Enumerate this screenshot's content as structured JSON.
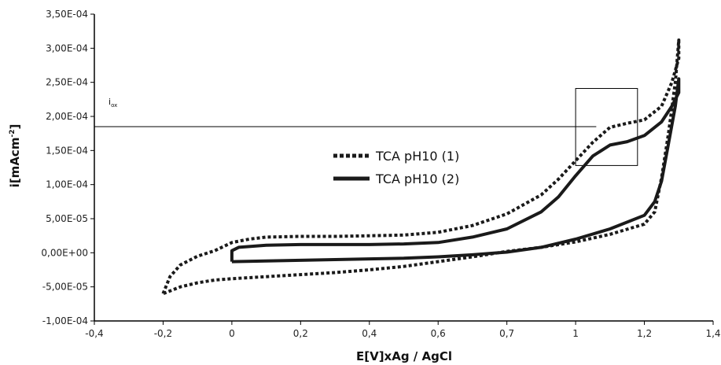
{
  "chart_data": {
    "type": "line",
    "title": "",
    "xlabel": "E[V]xAg / AgCl",
    "ylabel": "i[mAcm",
    "ylabel_sup": "-2",
    "ylabel_close": "]",
    "x_tick_labels": [
      "-0,4",
      "-0,2",
      "0",
      "0,2",
      "0,4",
      "0,6",
      "0,7",
      "1",
      "1,2",
      "1,4"
    ],
    "y_tick_labels": [
      "-1,00E-04",
      "-5,00E-05",
      "0,00E+00",
      "5,00E-05",
      "1,00E-04",
      "1,50E-04",
      "2,00E-04",
      "2,50E-04",
      "3,00E-04",
      "3,50E-04"
    ],
    "xlim": [
      -0.4,
      1.4
    ],
    "ylim": [
      -0.0001,
      0.00035
    ],
    "grid": false,
    "legend_position": "center",
    "annotation": {
      "label": "i",
      "sub": "ox",
      "y": 0.000185,
      "box_x": [
        1.0,
        1.18
      ],
      "box_y": [
        0.000128,
        0.000241
      ]
    },
    "series": [
      {
        "name": "TCA pH10 (1)",
        "style": "dotted",
        "color": "#1a1a1a",
        "points": [
          [
            -0.2,
            -6e-05
          ],
          [
            -0.18,
            -3.5e-05
          ],
          [
            -0.15,
            -1.8e-05
          ],
          [
            -0.1,
            -5e-06
          ],
          [
            -0.05,
            3e-06
          ],
          [
            0.0,
            1.5e-05
          ],
          [
            0.05,
            2e-05
          ],
          [
            0.1,
            2.3e-05
          ],
          [
            0.2,
            2.4e-05
          ],
          [
            0.3,
            2.4e-05
          ],
          [
            0.4,
            2.5e-05
          ],
          [
            0.5,
            2.6e-05
          ],
          [
            0.6,
            3e-05
          ],
          [
            0.7,
            4e-05
          ],
          [
            0.8,
            5.7e-05
          ],
          [
            0.9,
            8.5e-05
          ],
          [
            0.95,
            0.000108
          ],
          [
            1.0,
            0.000135
          ],
          [
            1.05,
            0.000162
          ],
          [
            1.1,
            0.000184
          ],
          [
            1.15,
            0.00019
          ],
          [
            1.2,
            0.000195
          ],
          [
            1.25,
            0.000215
          ],
          [
            1.28,
            0.00025
          ],
          [
            1.3,
            0.000285
          ],
          [
            1.3,
            0.000312
          ],
          [
            1.29,
            0.00025
          ],
          [
            1.27,
            0.000175
          ],
          [
            1.25,
            0.00011
          ],
          [
            1.23,
            6e-05
          ],
          [
            1.2,
            4.2e-05
          ],
          [
            1.1,
            2.7e-05
          ],
          [
            1.0,
            1.6e-05
          ],
          [
            0.9,
            8e-06
          ],
          [
            0.8,
            2e-06
          ],
          [
            0.7,
            -6e-06
          ],
          [
            0.6,
            -1.3e-05
          ],
          [
            0.5,
            -2e-05
          ],
          [
            0.4,
            -2.5e-05
          ],
          [
            0.3,
            -2.9e-05
          ],
          [
            0.2,
            -3.2e-05
          ],
          [
            0.1,
            -3.5e-05
          ],
          [
            0.0,
            -3.8e-05
          ],
          [
            -0.05,
            -4e-05
          ],
          [
            -0.1,
            -4.4e-05
          ],
          [
            -0.15,
            -5e-05
          ],
          [
            -0.2,
            -6e-05
          ]
        ]
      },
      {
        "name": "TCA pH10 (2)",
        "style": "solid",
        "color": "#1a1a1a",
        "points": [
          [
            0.0,
            -1.3e-05
          ],
          [
            0.0,
            3e-06
          ],
          [
            0.02,
            8e-06
          ],
          [
            0.1,
            1.1e-05
          ],
          [
            0.2,
            1.2e-05
          ],
          [
            0.3,
            1.2e-05
          ],
          [
            0.4,
            1.2e-05
          ],
          [
            0.5,
            1.3e-05
          ],
          [
            0.6,
            1.5e-05
          ],
          [
            0.7,
            2.3e-05
          ],
          [
            0.8,
            3.5e-05
          ],
          [
            0.9,
            6e-05
          ],
          [
            0.95,
            8.2e-05
          ],
          [
            1.0,
            0.000113
          ],
          [
            1.05,
            0.000142
          ],
          [
            1.1,
            0.000158
          ],
          [
            1.15,
            0.000163
          ],
          [
            1.2,
            0.000172
          ],
          [
            1.25,
            0.000192
          ],
          [
            1.28,
            0.000215
          ],
          [
            1.3,
            0.000235
          ],
          [
            1.3,
            0.000255
          ],
          [
            1.29,
            0.000215
          ],
          [
            1.27,
            0.00016
          ],
          [
            1.25,
            0.000105
          ],
          [
            1.23,
            7.5e-05
          ],
          [
            1.2,
            5.5e-05
          ],
          [
            1.1,
            3.5e-05
          ],
          [
            1.0,
            2e-05
          ],
          [
            0.9,
            8e-06
          ],
          [
            0.8,
            1e-06
          ],
          [
            0.7,
            -3e-06
          ],
          [
            0.6,
            -6e-06
          ],
          [
            0.5,
            -8e-06
          ],
          [
            0.4,
            -9e-06
          ],
          [
            0.3,
            -1e-05
          ],
          [
            0.2,
            -1.1e-05
          ],
          [
            0.1,
            -1.2e-05
          ],
          [
            0.0,
            -1.3e-05
          ]
        ]
      }
    ]
  }
}
